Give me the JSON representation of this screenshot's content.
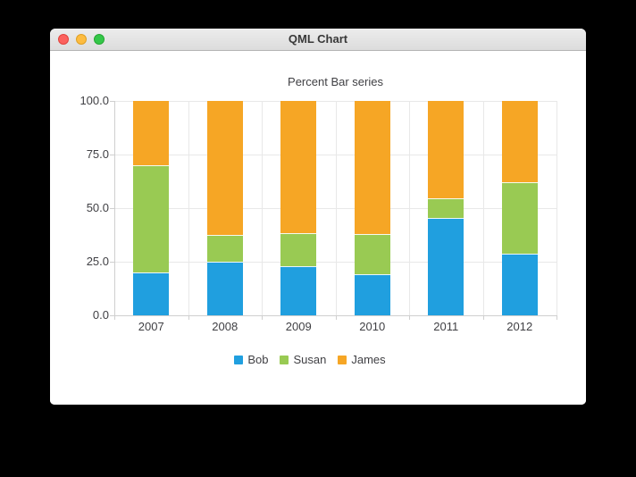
{
  "window": {
    "title": "QML Chart",
    "buttons": {
      "close_color": "#fc615d",
      "minimize_color": "#fdbc40",
      "zoom_color": "#34c749"
    }
  },
  "chart_data": {
    "type": "bar",
    "stacking": "percent",
    "title": "Percent Bar series",
    "categories": [
      "2007",
      "2008",
      "2009",
      "2010",
      "2011",
      "2012"
    ],
    "series": [
      {
        "name": "Bob",
        "color": "#209fdf",
        "values": [
          2,
          2,
          3,
          4,
          5,
          6
        ],
        "percents": [
          20,
          25,
          23.1,
          19,
          45.5,
          28.6
        ]
      },
      {
        "name": "Susan",
        "color": "#99ca53",
        "values": [
          5,
          1,
          2,
          4,
          1,
          7
        ],
        "percents": [
          50,
          12.5,
          15.4,
          19,
          9,
          33.3
        ]
      },
      {
        "name": "James",
        "color": "#f6a625",
        "values": [
          3,
          5,
          8,
          13,
          5,
          8
        ],
        "percents": [
          30,
          62.5,
          61.5,
          62,
          45.5,
          38.1
        ]
      }
    ],
    "yticks": {
      "labels": [
        "0.0",
        "25.0",
        "50.0",
        "75.0",
        "100.0"
      ],
      "values": [
        0,
        25,
        50,
        75,
        100
      ]
    },
    "ylim": [
      0,
      100
    ],
    "grid": true,
    "grid_color": "#e8e8e8",
    "axis_color": "#cfcfcf",
    "label_color": "#404044",
    "legend": {
      "position": "bottom",
      "entries": [
        "Bob",
        "Susan",
        "James"
      ]
    }
  }
}
